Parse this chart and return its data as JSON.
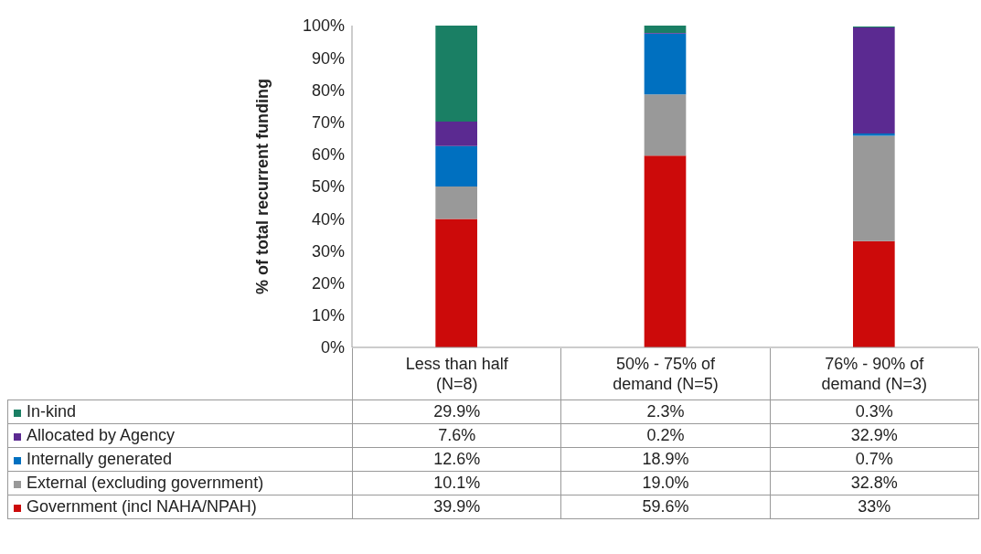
{
  "chart_data": {
    "type": "bar",
    "stacked": true,
    "ylabel": "% of total recurrent funding",
    "categories": [
      "Less than half (N=8)",
      "50% - 75% of demand (N=5)",
      "76% - 90% of demand (N=3)"
    ],
    "series": [
      {
        "name": "Government (incl NAHA/NPAH)",
        "color": "#cc0a0a",
        "values": [
          39.9,
          59.6,
          33
        ],
        "value_labels": [
          "39.9%",
          "59.6%",
          "33%"
        ]
      },
      {
        "name": "External (excluding government)",
        "color": "#999999",
        "values": [
          10.1,
          19.0,
          32.8
        ],
        "value_labels": [
          "10.1%",
          "19.0%",
          "32.8%"
        ]
      },
      {
        "name": "Internally generated",
        "color": "#0070c0",
        "values": [
          12.6,
          18.9,
          0.7
        ],
        "value_labels": [
          "12.6%",
          "18.9%",
          "0.7%"
        ]
      },
      {
        "name": "Allocated by Agency",
        "color": "#5b2a91",
        "values": [
          7.6,
          0.2,
          32.9
        ],
        "value_labels": [
          "7.6%",
          "0.2%",
          "32.9%"
        ]
      },
      {
        "name": "In-kind",
        "color": "#1a7f64",
        "values": [
          29.9,
          2.3,
          0.3
        ],
        "value_labels": [
          "29.9%",
          "2.3%",
          "0.3%"
        ]
      }
    ],
    "ylim": [
      0,
      100
    ],
    "yticks": [
      {
        "value": 0,
        "label": "0%"
      },
      {
        "value": 10,
        "label": "10%"
      },
      {
        "value": 20,
        "label": "20%"
      },
      {
        "value": 30,
        "label": "30%"
      },
      {
        "value": 40,
        "label": "40%"
      },
      {
        "value": 50,
        "label": "50%"
      },
      {
        "value": 60,
        "label": "60%"
      },
      {
        "value": 70,
        "label": "70%"
      },
      {
        "value": 80,
        "label": "80%"
      },
      {
        "value": 90,
        "label": "90%"
      },
      {
        "value": 100,
        "label": "100%"
      }
    ],
    "grid": false,
    "legend": "bottom"
  }
}
